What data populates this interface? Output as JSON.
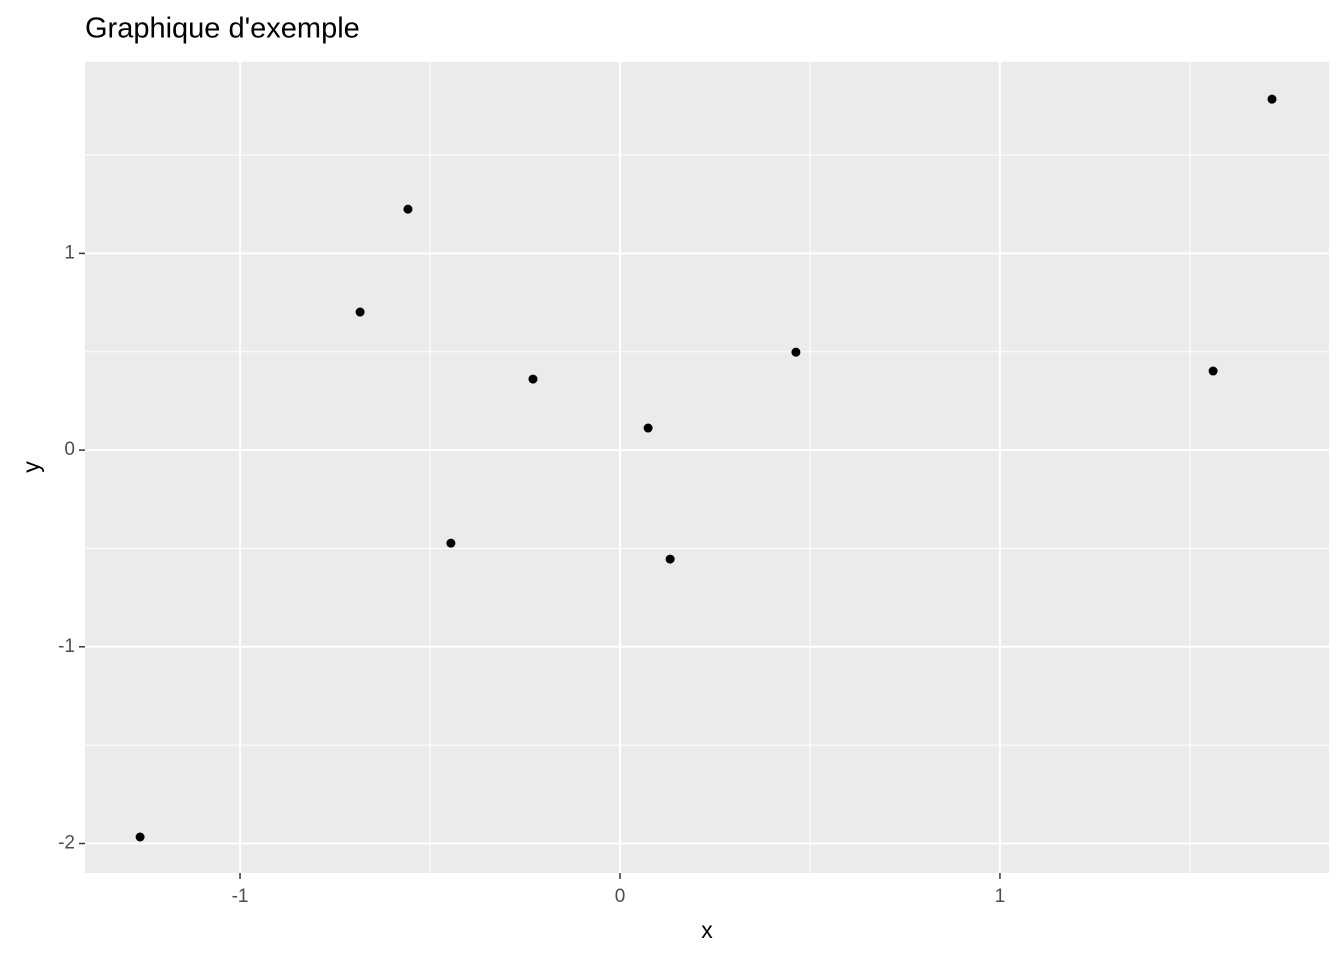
{
  "chart_data": {
    "type": "scatter",
    "title": "Graphique d'exemple",
    "x_label": "x",
    "y_label": "y",
    "x": [
      -1.263,
      -0.684,
      -0.558,
      -0.445,
      -0.229,
      0.074,
      0.132,
      0.463,
      1.561,
      1.716
    ],
    "values": [
      -1.967,
      0.702,
      1.225,
      -0.473,
      0.361,
      0.112,
      -0.554,
      0.498,
      0.402,
      1.784
    ],
    "color": "#000000",
    "xlim": [
      -1.408,
      1.866
    ],
    "ylim": [
      -2.15,
      1.973
    ],
    "xticks": [
      -1,
      0,
      1
    ],
    "yticks": [
      -2,
      -1,
      0,
      1
    ],
    "xminor": [
      -0.5,
      0.5,
      1.5
    ],
    "yminor": [
      -1.5,
      -0.5,
      0.5,
      1.5
    ],
    "grid": true,
    "panel_color": "#ebebeb"
  }
}
